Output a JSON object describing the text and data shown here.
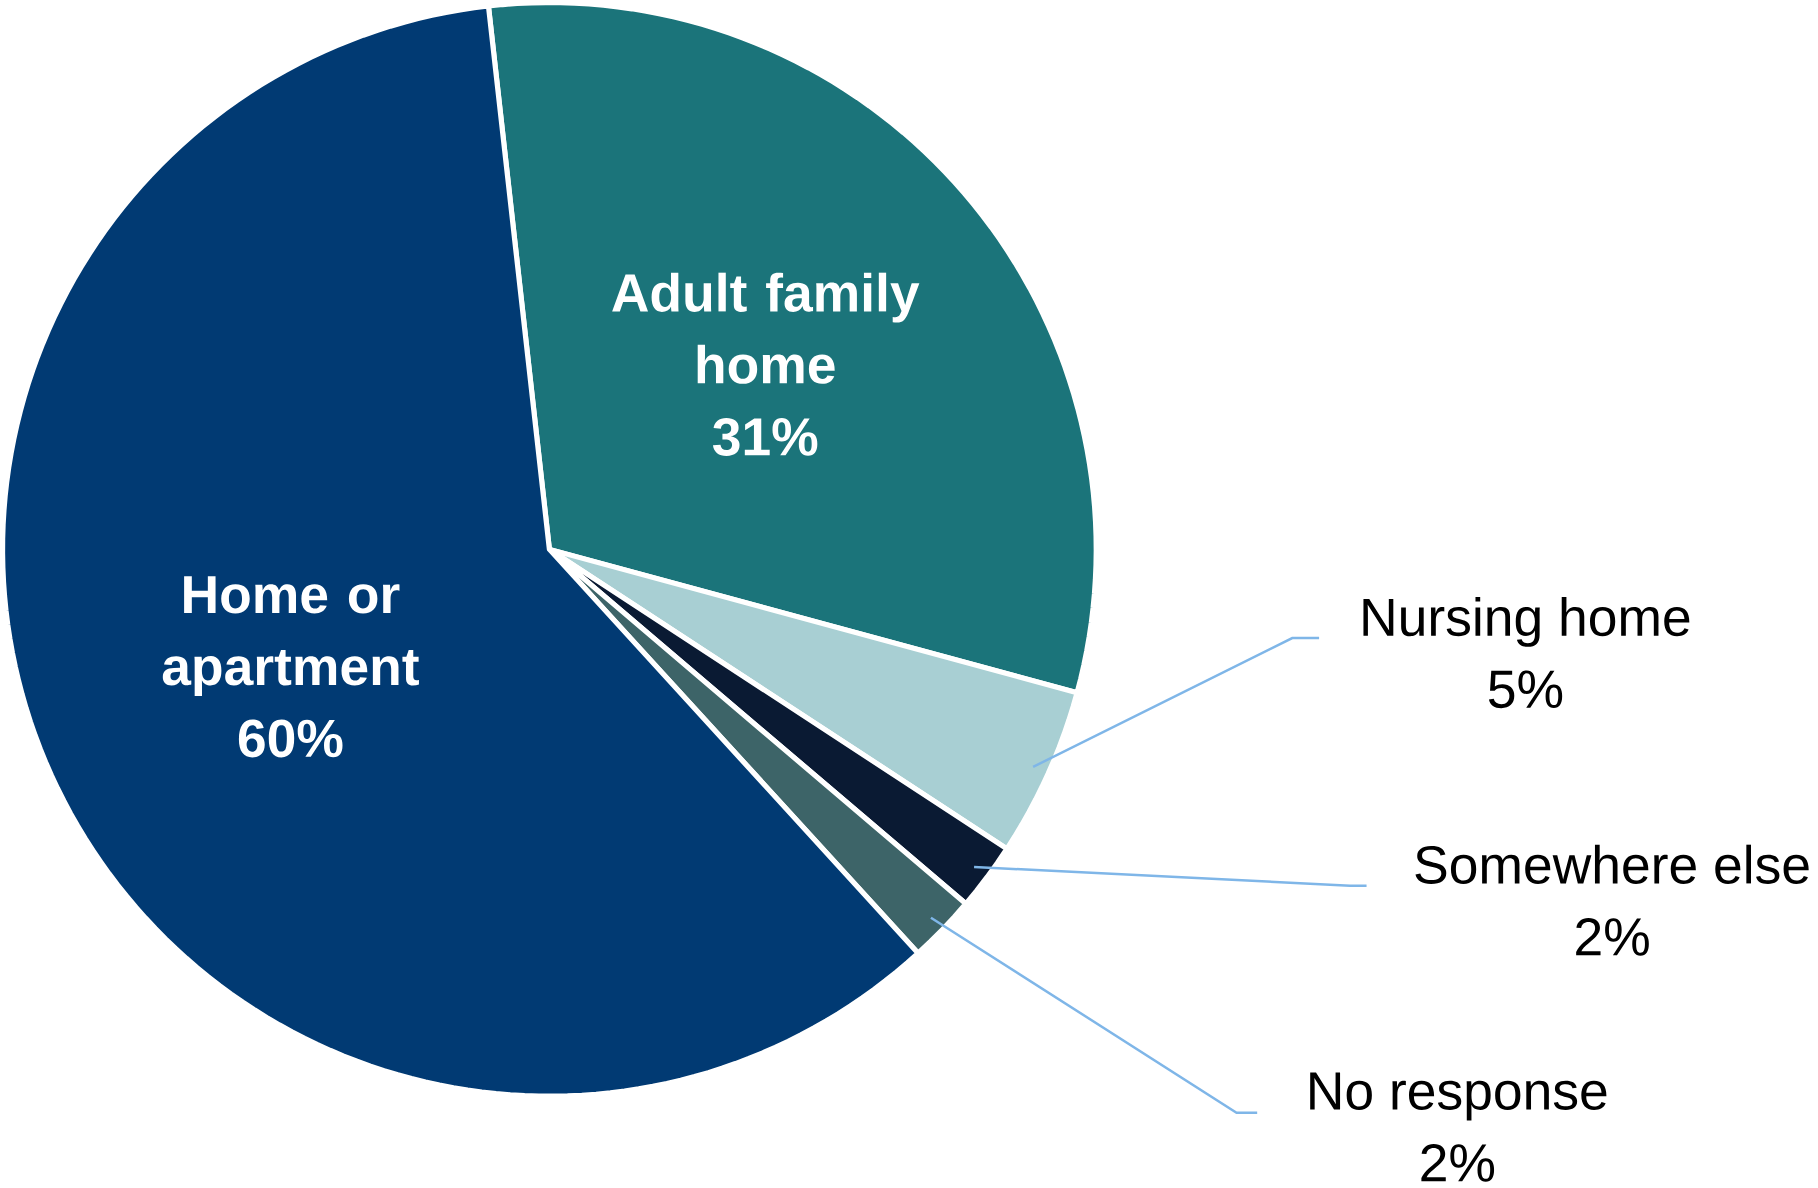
{
  "chart_data": {
    "type": "pie",
    "categories": [
      "Adult family home",
      "Nursing home",
      "Somewhere else",
      "No response",
      "Home or apartment"
    ],
    "values": [
      31,
      5,
      2,
      2,
      60
    ],
    "value_labels": [
      "31%",
      "5%",
      "2%",
      "2%",
      "60%"
    ],
    "colors": [
      "#1b747a",
      "#a8cfd3",
      "#0a1a33",
      "#3d6468",
      "#013a73"
    ]
  }
}
